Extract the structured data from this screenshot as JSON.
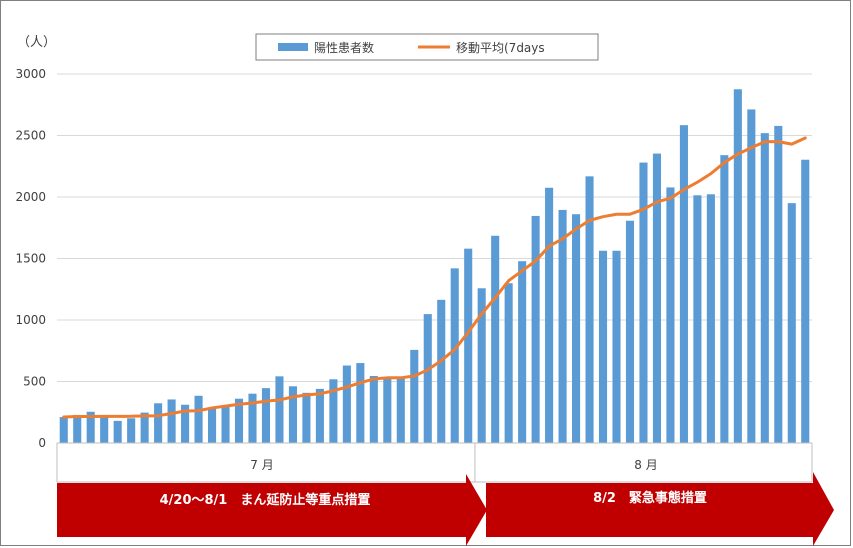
{
  "chart_data": {
    "type": "bar",
    "unit_label": "（人）",
    "ylim": [
      0,
      3000
    ],
    "yticks": [
      0,
      500,
      1000,
      1500,
      2000,
      2500,
      3000
    ],
    "grid": true,
    "legend_position": "top",
    "series": [
      {
        "name": "陽性患者数",
        "type": "bar",
        "color": "#5b9bd5",
        "values": [
          211,
          228,
          254,
          215,
          180,
          201,
          247,
          323,
          354,
          311,
          384,
          281,
          306,
          360,
          401,
          446,
          542,
          461,
          408,
          440,
          518,
          630,
          650,
          545,
          526,
          526,
          757,
          1048,
          1164,
          1420,
          1580,
          1258,
          1685,
          1299,
          1478,
          1846,
          2075,
          1895,
          1860,
          2168,
          1563,
          1563,
          1807,
          2280,
          2353,
          2078,
          2584,
          2014,
          2022,
          2340,
          2876,
          2712,
          2519,
          2578,
          1950,
          2303
        ]
      },
      {
        "name": "移動平均(7days",
        "type": "line",
        "color": "#ed7d31",
        "values": [
          211,
          215,
          215,
          216,
          216,
          217,
          221,
          222,
          240,
          260,
          262,
          285,
          300,
          315,
          325,
          340,
          350,
          375,
          390,
          400,
          425,
          455,
          490,
          520,
          530,
          530,
          545,
          595,
          670,
          760,
          900,
          1050,
          1180,
          1320,
          1400,
          1480,
          1600,
          1660,
          1740,
          1810,
          1840,
          1860,
          1860,
          1900,
          1960,
          1990,
          2060,
          2120,
          2190,
          2280,
          2350,
          2400,
          2450,
          2450,
          2430,
          2480
        ]
      }
    ],
    "months": [
      "7 月",
      "8 月"
    ],
    "periods": [
      "4/20〜8/1　まん延防止等重点措置",
      "8/2　緊急事態措置"
    ]
  }
}
